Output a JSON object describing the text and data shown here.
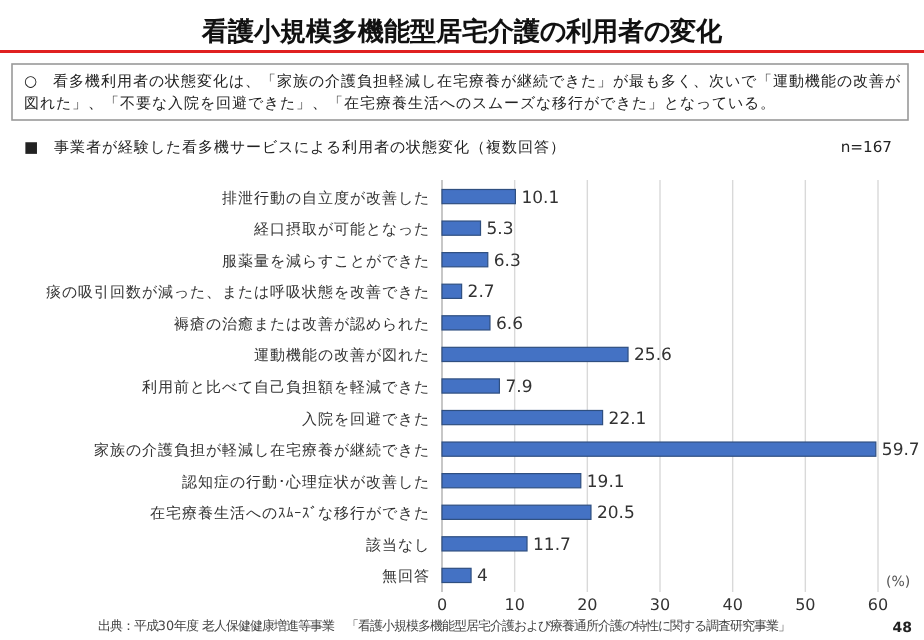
{
  "chart_data": {
    "type": "bar",
    "orientation": "horizontal",
    "title": "看護小規模多機能型居宅介護の利用者の変化",
    "subtitle": "○　看多機利用者の状態変化は、「家族の介護負担軽減し在宅療養が継続できた」が最も多く、次いで「運動機能の改善が図れた」、「不要な入院を回避できた」、「在宅療養生活へのスムーズな移行ができた」となっている。",
    "annotations": [
      "■　事業者が経験した看多機サービスによる利用者の状態変化（複数回答）",
      "n=167",
      "出典：平成30年度 老人保健健康増進等事業　「看護小規模多機能型居宅介護および療養通所介護の特性に関する調査研究事業」",
      "48"
    ],
    "xlabel": "(%)",
    "categories": [
      "排泄行動の自立度が改善した",
      "経口摂取が可能となった",
      "服薬量を減らすことができた",
      "痰の吸引回数が減った、または呼吸状態を改善できた",
      "褥瘡の治癒または改善が認められた",
      "運動機能の改善が図れた",
      "利用前と比べて自己負担額を軽減できた",
      "入院を回避できた",
      "家族の介護負担が軽減し在宅療養が継続できた",
      "認知症の行動･心理症状が改善した",
      "在宅療養生活へのｽﾑｰｽﾞな移行ができた",
      "該当なし",
      "無回答"
    ],
    "values": [
      10.1,
      5.3,
      6.3,
      2.7,
      6.6,
      25.6,
      7.9,
      22.1,
      59.7,
      19.1,
      20.5,
      11.7,
      4
    ],
    "color": "#4472c4",
    "xlim": [
      0,
      60
    ],
    "xticks": [
      0,
      10,
      20,
      30,
      40,
      50,
      60
    ],
    "grid": "x",
    "data_labels": true
  }
}
